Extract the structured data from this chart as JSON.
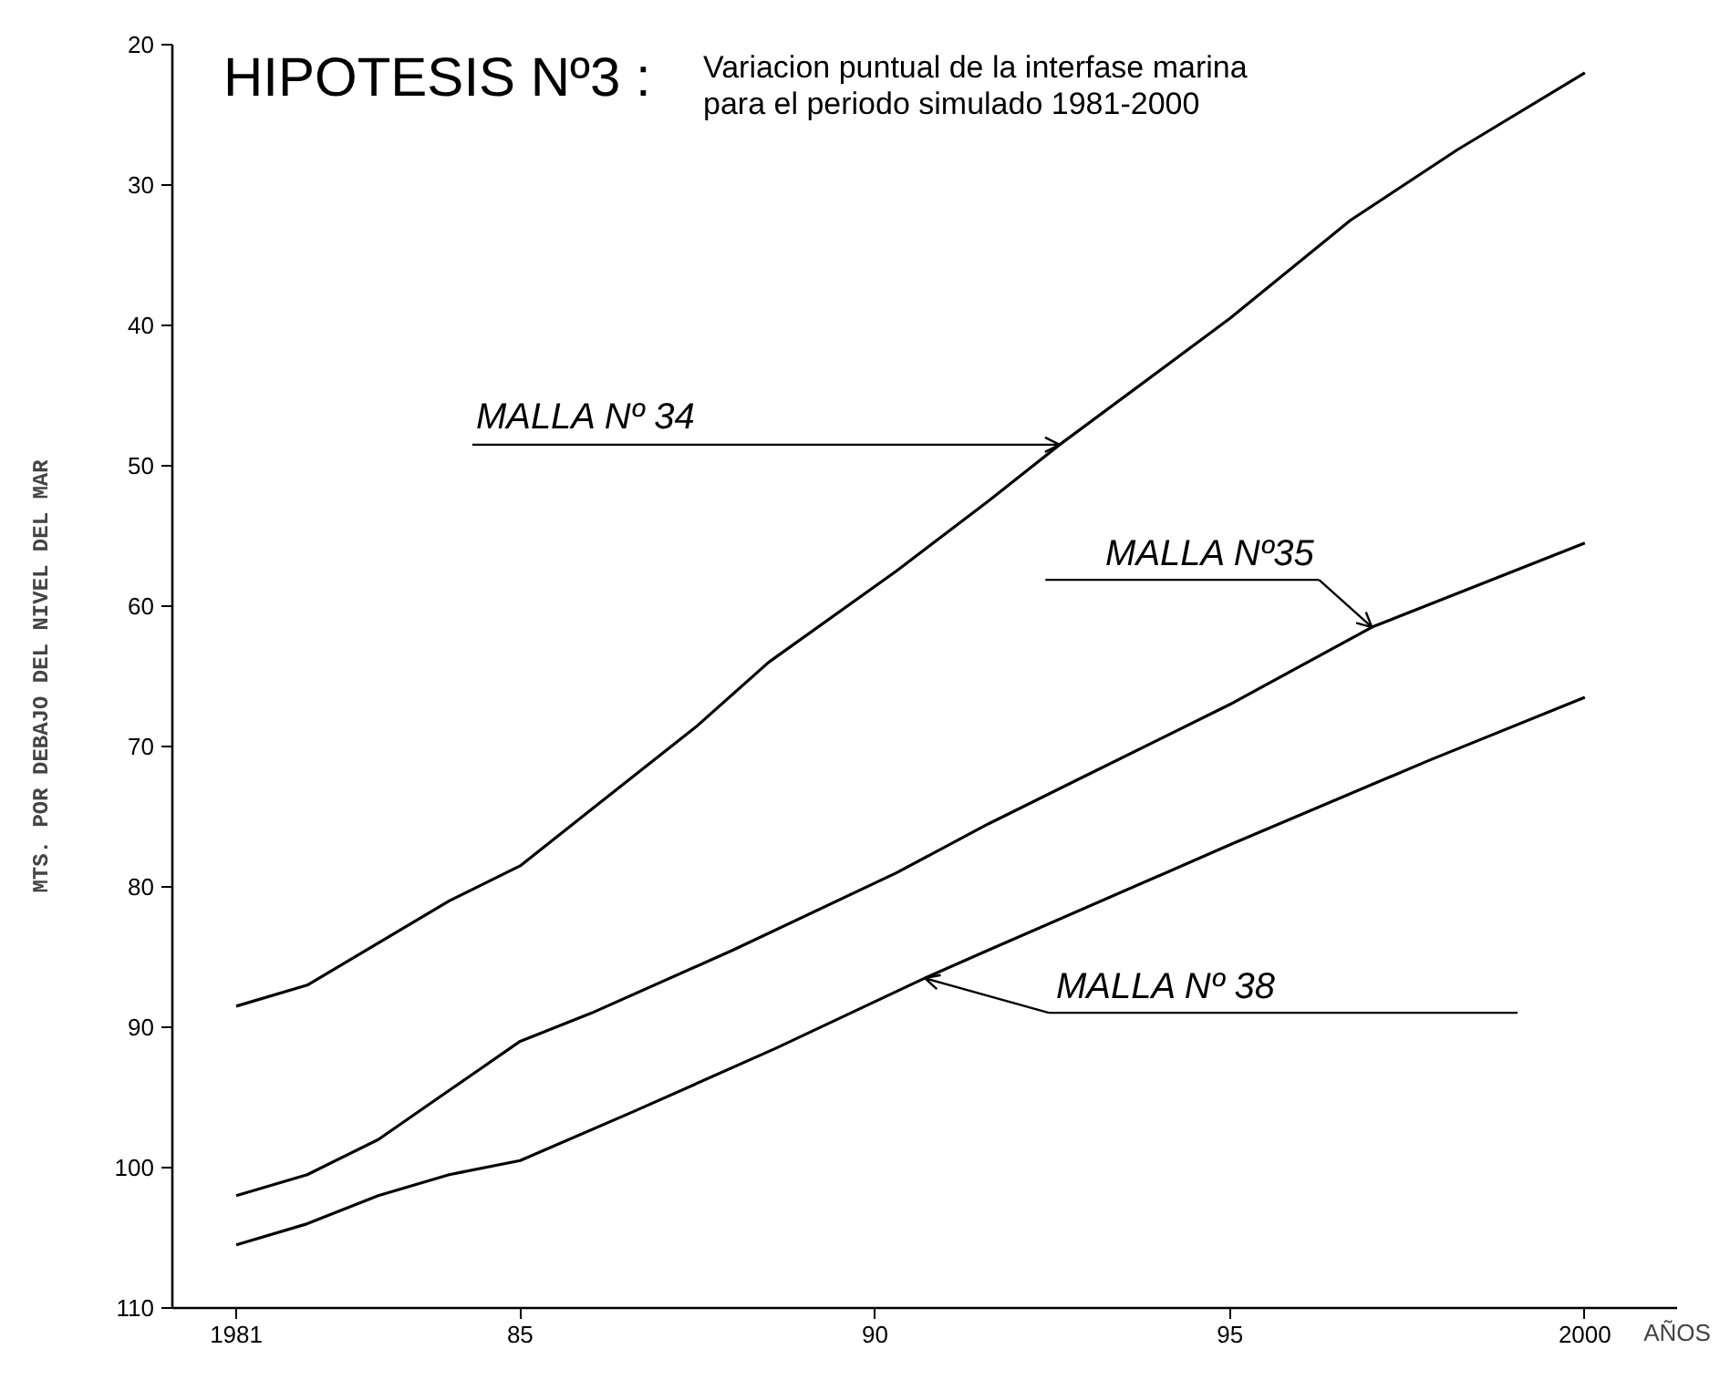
{
  "chart_data": {
    "type": "line",
    "title": "HIPOTESIS Nº3 :",
    "subtitle": "Variacion puntual de la interfase marina\npara el periodo simulado 1981-2000",
    "xlabel": "AÑOS",
    "ylabel": "MTS. POR DEBAJO DEL NIVEL DEL MAR",
    "series": [
      {
        "color": "#000000",
        "x": [
          1981,
          1982,
          1983,
          1984,
          1985,
          1986,
          1987.5,
          1988.5,
          1990.3,
          1991.6,
          1992.6,
          1995,
          1996.7,
          1998.2,
          2000
        ],
        "values": [
          88.5,
          87,
          84,
          81,
          78.5,
          74.5,
          68.5,
          64,
          57.5,
          52.5,
          48.5,
          39.5,
          32.5,
          27.5,
          22
        ]
      },
      {
        "color": "#000000",
        "x": [
          1981,
          1982,
          1983,
          1984,
          1985,
          1986,
          1988,
          1990.3,
          1991.6,
          1993,
          1995,
          1997,
          2000
        ],
        "values": [
          102,
          100.5,
          98,
          94.5,
          91,
          89,
          84.5,
          79,
          75.5,
          72,
          67,
          61.5,
          55.5
        ]
      },
      {
        "color": "#000000",
        "x": [
          1981,
          1982,
          1983,
          1984,
          1985,
          1986.6,
          1988.6,
          1990.7,
          1991.6,
          1995,
          1997.8,
          2000
        ],
        "values": [
          105.5,
          104,
          102,
          100.5,
          99.5,
          96,
          91.5,
          86.5,
          84.5,
          77,
          71,
          66.5
        ]
      }
    ],
    "annotations": [
      {
        "text": "MALLA Nº 34",
        "x": 1992.6,
        "y": 48.5
      },
      {
        "text": "MALLA Nº35",
        "x": 1997,
        "y": 61.5
      },
      {
        "text": "MALLA Nº 38",
        "x": 1990.7,
        "y": 86.5
      }
    ],
    "xlim": [
      1980.1,
      2001.3
    ],
    "xticks": [
      1981,
      {
        "value": 1985,
        "label": "85"
      },
      {
        "value": 1990,
        "label": "90"
      },
      {
        "value": 1995,
        "label": "95"
      },
      2000
    ],
    "ylim": [
      110,
      20
    ],
    "yticks": [
      20,
      30,
      40,
      50,
      60,
      70,
      80,
      90,
      100,
      110
    ],
    "grid": false,
    "line_style": "solid"
  }
}
